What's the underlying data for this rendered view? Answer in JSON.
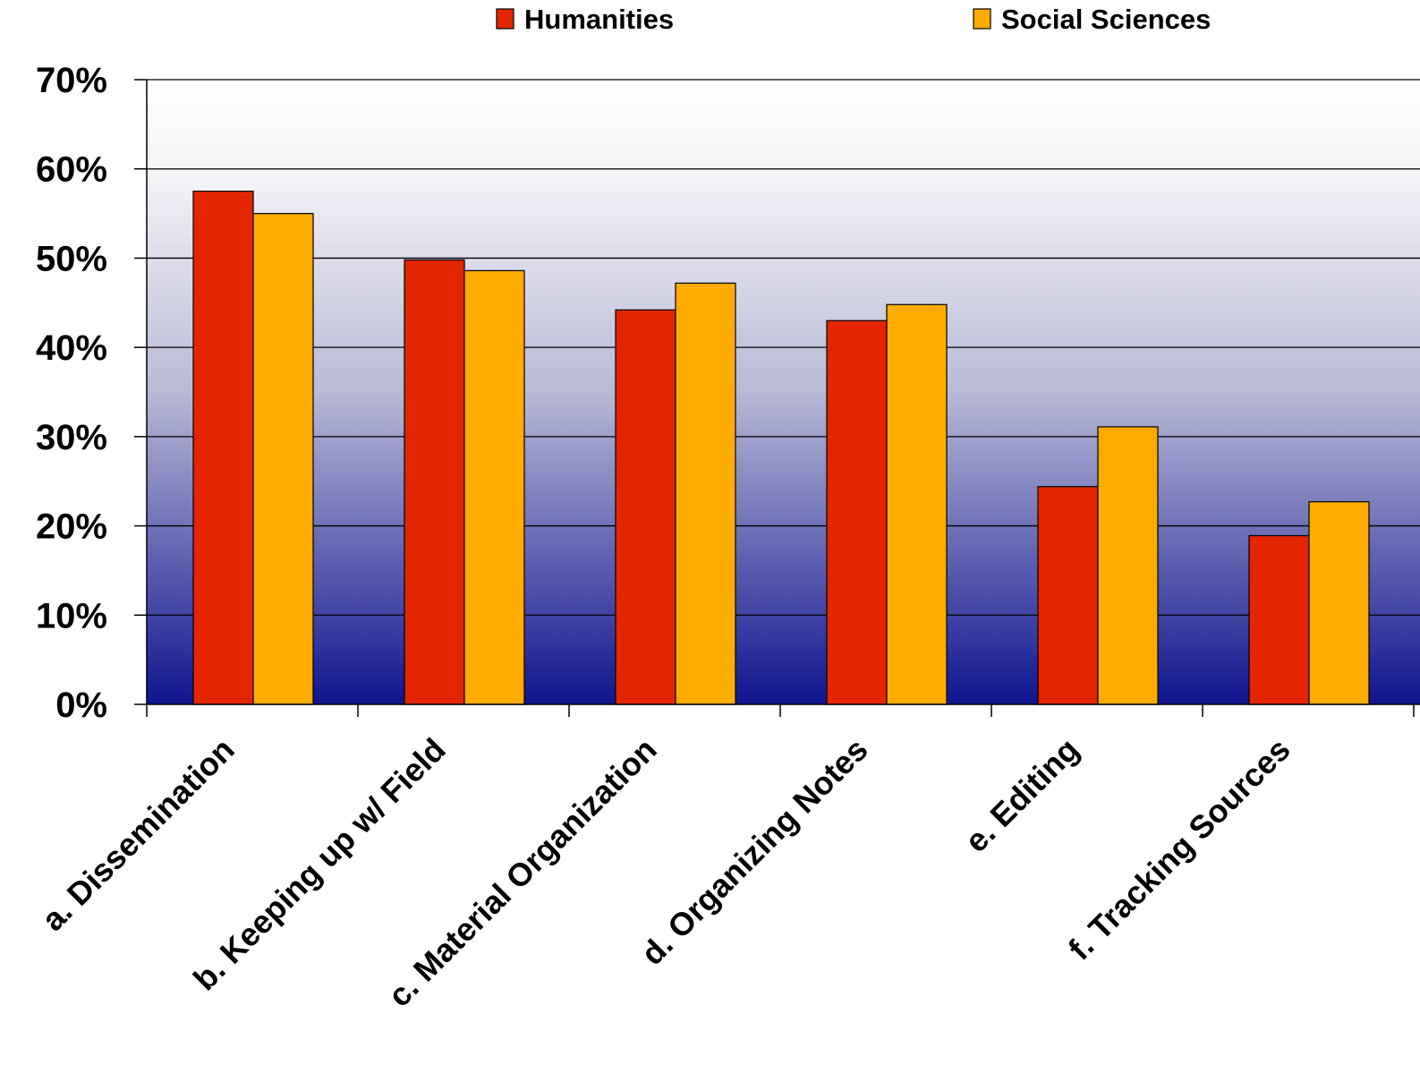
{
  "chart_data": {
    "type": "bar",
    "categories": [
      "a. Dissemination",
      "b. Keeping up w/ Field",
      "c. Material Organization",
      "d. Organizing Notes",
      "e. Editing",
      "f.  Tracking Sources"
    ],
    "series": [
      {
        "name": "Humanities",
        "color": "#e32600",
        "values": [
          57.5,
          49.8,
          44.2,
          43.0,
          24.4,
          18.9
        ]
      },
      {
        "name": "Social Sciences",
        "color": "#ffab00",
        "values": [
          55.0,
          48.6,
          47.2,
          44.8,
          31.1,
          22.7
        ]
      }
    ],
    "yticks": [
      "0%",
      "10%",
      "20%",
      "30%",
      "40%",
      "50%",
      "60%",
      "70%"
    ],
    "ylim": [
      0,
      70
    ],
    "grid": true,
    "legend_position": "top",
    "background_gradient": [
      "#ffffff",
      "#10158f"
    ]
  }
}
